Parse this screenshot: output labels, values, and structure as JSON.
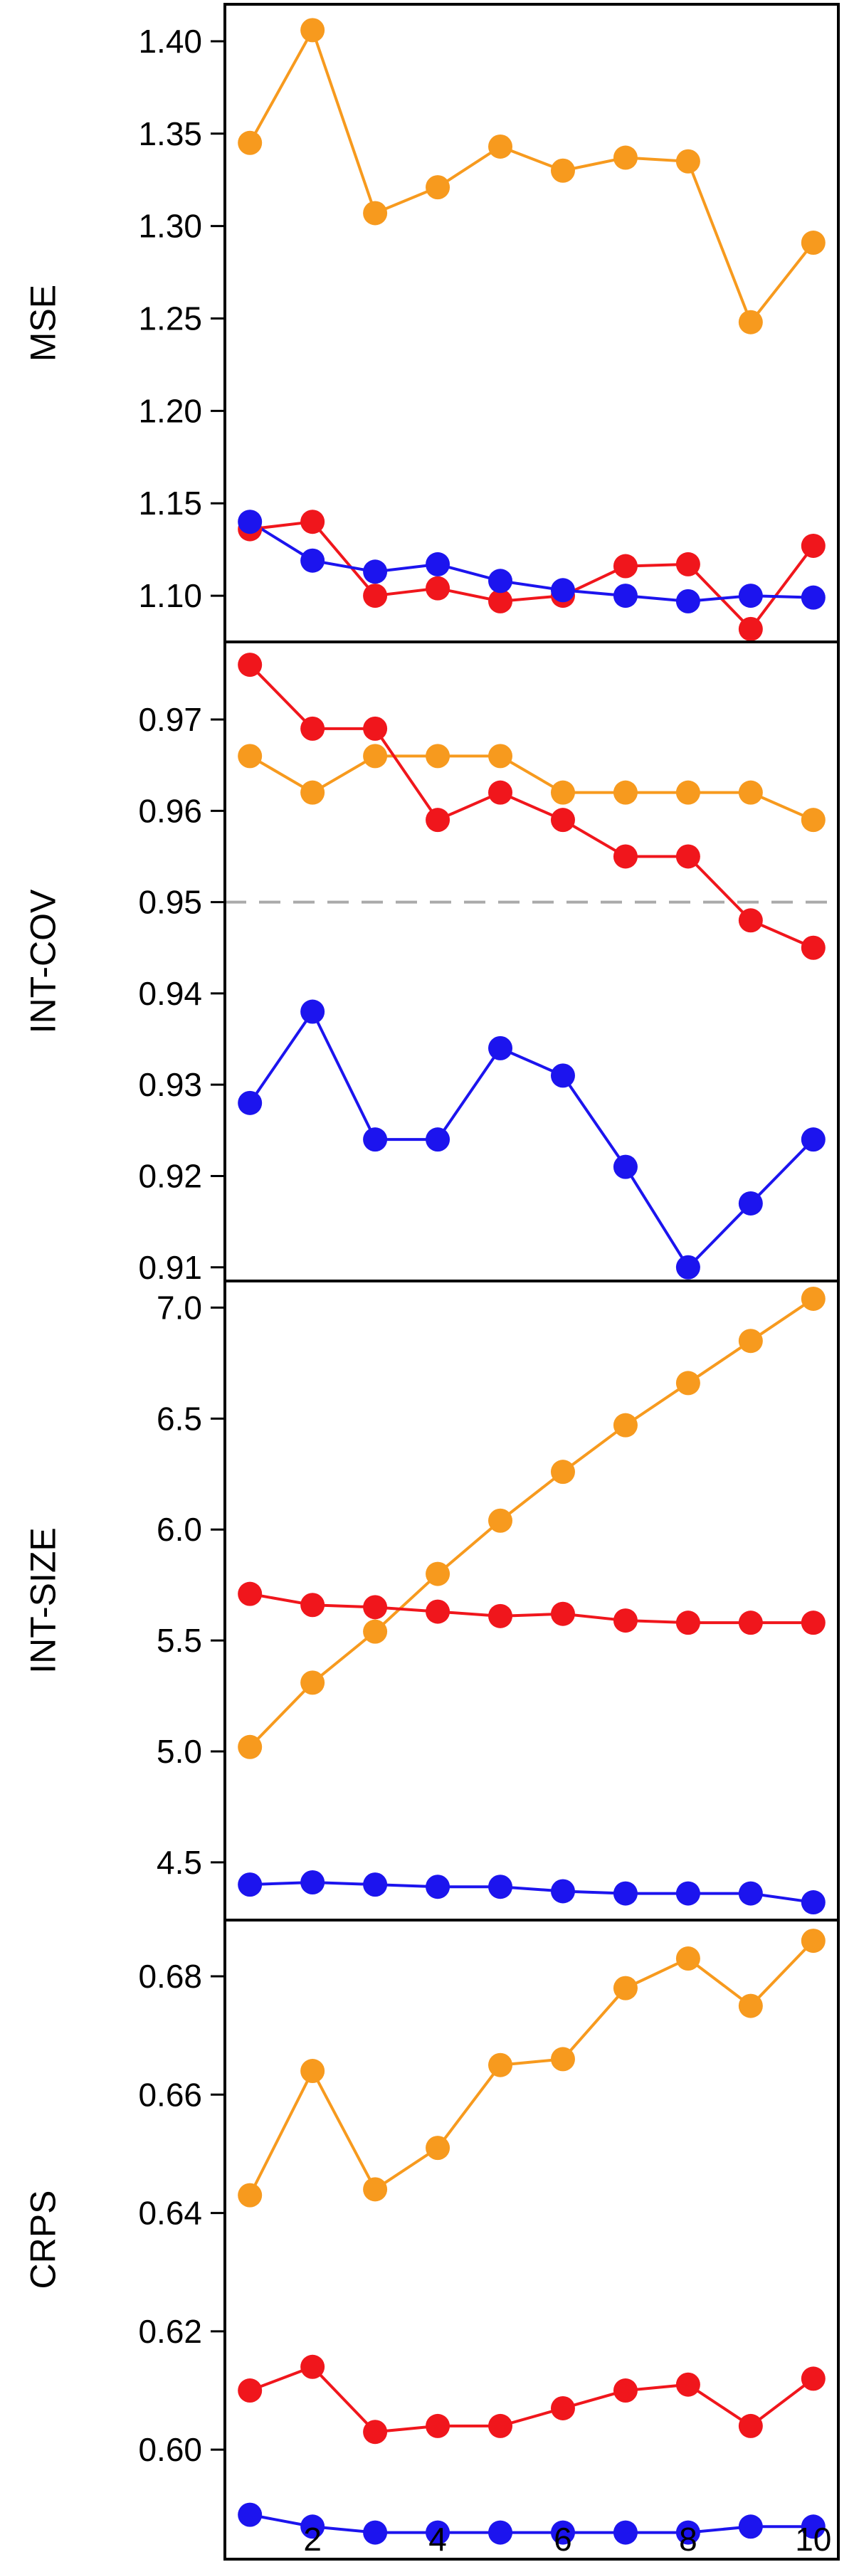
{
  "chart_data": [
    {
      "type": "line",
      "ylabel": "MSE",
      "x": [
        1,
        2,
        3,
        4,
        5,
        6,
        7,
        8,
        9,
        10
      ],
      "ylim": [
        1.075,
        1.42
      ],
      "yticks": [
        1.1,
        1.15,
        1.2,
        1.25,
        1.3,
        1.35,
        1.4
      ],
      "yticklabels": [
        "1.10",
        "1.15",
        "1.20",
        "1.25",
        "1.30",
        "1.35",
        "1.40"
      ],
      "series": [
        {
          "color": "#F79A1E",
          "values": [
            1.345,
            1.406,
            1.307,
            1.321,
            1.343,
            1.33,
            1.337,
            1.335,
            1.248,
            1.291
          ]
        },
        {
          "color": "#F0161C",
          "values": [
            1.136,
            1.14,
            1.1,
            1.104,
            1.097,
            1.1,
            1.116,
            1.117,
            1.082,
            1.127
          ]
        },
        {
          "color": "#1C14EE",
          "values": [
            1.14,
            1.119,
            1.113,
            1.117,
            1.108,
            1.103,
            1.1,
            1.097,
            1.1,
            1.099
          ]
        }
      ]
    },
    {
      "type": "line",
      "ylabel": "INT-COV",
      "x": [
        1,
        2,
        3,
        4,
        5,
        6,
        7,
        8,
        9,
        10
      ],
      "ylim": [
        0.9085,
        0.9785
      ],
      "yticks": [
        0.91,
        0.92,
        0.93,
        0.94,
        0.95,
        0.96,
        0.97
      ],
      "yticklabels": [
        "0.91",
        "0.92",
        "0.93",
        "0.94",
        "0.95",
        "0.96",
        "0.97"
      ],
      "reference_line": {
        "y": 0.95,
        "style": "dashed",
        "color": "#AAAAAA"
      },
      "series": [
        {
          "color": "#F79A1E",
          "values": [
            0.966,
            0.962,
            0.966,
            0.966,
            0.966,
            0.962,
            0.962,
            0.962,
            0.962,
            0.959
          ]
        },
        {
          "color": "#F0161C",
          "values": [
            0.976,
            0.969,
            0.969,
            0.959,
            0.962,
            0.959,
            0.955,
            0.955,
            0.948,
            0.945
          ]
        },
        {
          "color": "#1C14EE",
          "values": [
            0.928,
            0.938,
            0.924,
            0.924,
            0.934,
            0.931,
            0.921,
            0.91,
            0.917,
            0.924
          ]
        }
      ]
    },
    {
      "type": "line",
      "ylabel": "INT-SIZE",
      "x": [
        1,
        2,
        3,
        4,
        5,
        6,
        7,
        8,
        9,
        10
      ],
      "ylim": [
        4.24,
        7.12
      ],
      "yticks": [
        4.5,
        5.0,
        5.5,
        6.0,
        6.5,
        7.0
      ],
      "yticklabels": [
        "4.5",
        "5.0",
        "5.5",
        "6.0",
        "6.5",
        "7.0"
      ],
      "series": [
        {
          "color": "#F79A1E",
          "values": [
            5.02,
            5.31,
            5.54,
            5.8,
            6.04,
            6.26,
            6.47,
            6.66,
            6.85,
            7.04
          ]
        },
        {
          "color": "#F0161C",
          "values": [
            5.71,
            5.66,
            5.65,
            5.63,
            5.61,
            5.62,
            5.59,
            5.58,
            5.58,
            5.58
          ]
        },
        {
          "color": "#1C14EE",
          "values": [
            4.4,
            4.41,
            4.4,
            4.39,
            4.39,
            4.37,
            4.36,
            4.36,
            4.36,
            4.32
          ]
        }
      ]
    },
    {
      "type": "line",
      "ylabel": "CRPS",
      "x": [
        1,
        2,
        3,
        4,
        5,
        6,
        7,
        8,
        9,
        10
      ],
      "xticks": [
        2,
        4,
        6,
        8,
        10
      ],
      "xticklabels": [
        "2",
        "4",
        "6",
        "8",
        "10"
      ],
      "ylim": [
        0.5815,
        0.6895
      ],
      "yticks": [
        0.6,
        0.62,
        0.64,
        0.66,
        0.68
      ],
      "yticklabels": [
        "0.60",
        "0.62",
        "0.64",
        "0.66",
        "0.68"
      ],
      "series": [
        {
          "color": "#F79A1E",
          "values": [
            0.643,
            0.664,
            0.644,
            0.651,
            0.665,
            0.666,
            0.678,
            0.683,
            0.675,
            0.686
          ]
        },
        {
          "color": "#F0161C",
          "values": [
            0.61,
            0.614,
            0.603,
            0.604,
            0.604,
            0.607,
            0.61,
            0.611,
            0.604,
            0.612
          ]
        },
        {
          "color": "#1C14EE",
          "values": [
            0.589,
            0.587,
            0.586,
            0.586,
            0.586,
            0.586,
            0.586,
            0.586,
            0.587,
            0.587
          ]
        }
      ]
    }
  ]
}
